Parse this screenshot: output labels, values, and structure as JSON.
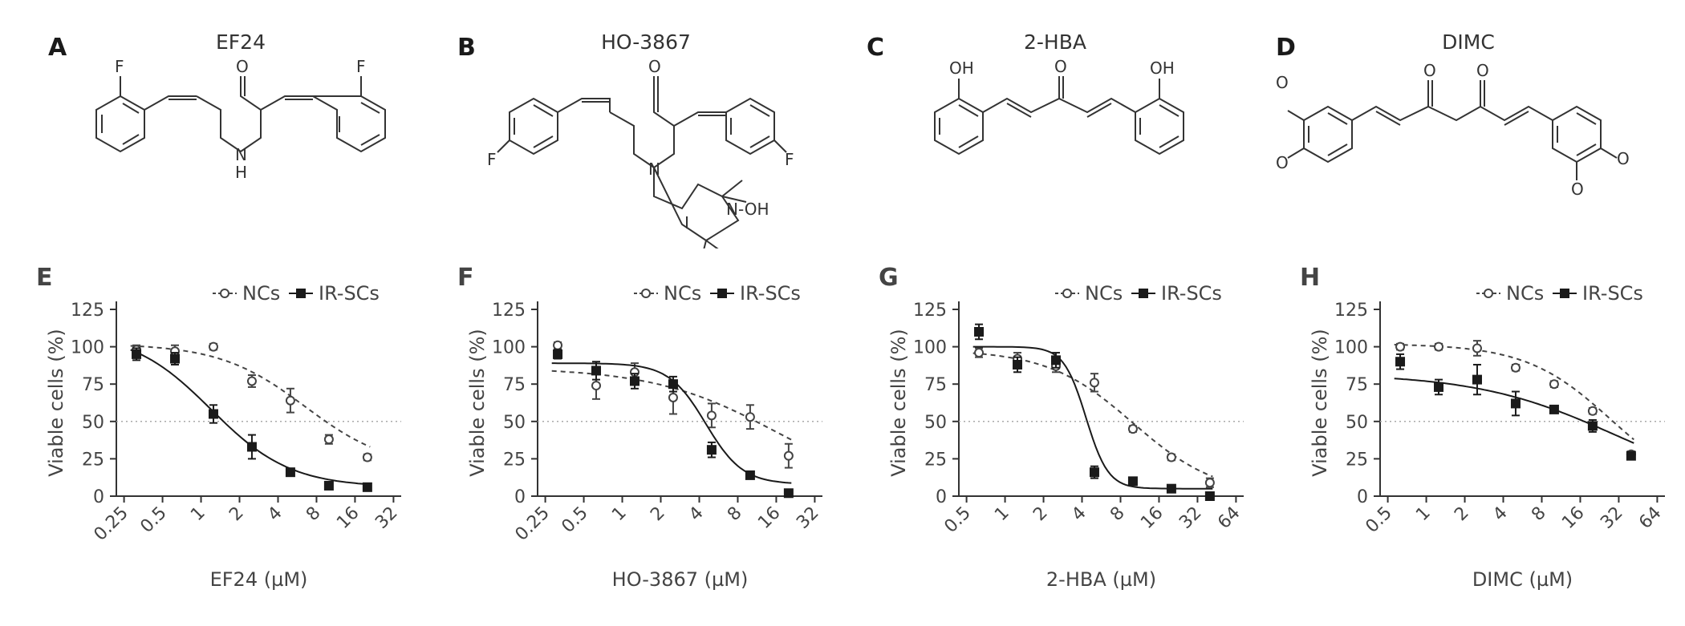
{
  "panels_top": [
    {
      "letter": "A",
      "title": "EF24"
    },
    {
      "letter": "B",
      "title": "HO-3867"
    },
    {
      "letter": "C",
      "title": "2-HBA"
    },
    {
      "letter": "D",
      "title": "DIMC"
    }
  ],
  "structure_atom_labels": {
    "EF24": [
      "F",
      "O",
      "F",
      "N",
      "H"
    ],
    "HO-3867": [
      "O",
      "F",
      "F",
      "N",
      "N-OH"
    ],
    "2-HBA": [
      "OH",
      "O",
      "OH"
    ],
    "DIMC": [
      "O",
      "O",
      "O",
      "O",
      "O",
      "O"
    ]
  },
  "colors": {
    "ncs": "#444444",
    "irscs": "#1a1a1a",
    "reference_line": "#aaaaaa"
  },
  "chart_data": [
    {
      "letter": "E",
      "type": "scatter",
      "scale_x": "log2",
      "xlabel": "EF24 (µM)",
      "ylabel": "Viable cells (%)",
      "xticks": [
        "0.25",
        "0.5",
        "1",
        "2",
        "4",
        "8",
        "16",
        "32"
      ],
      "yticks": [
        "0",
        "25",
        "50",
        "75",
        "100",
        "125"
      ],
      "ylim": [
        0,
        125
      ],
      "reference_line": 50,
      "legend": [
        "NCs",
        "IR-SCs"
      ],
      "series": [
        {
          "name": "NCs",
          "marker": "open-circle",
          "line": "dashed",
          "x": [
            0.3125,
            0.625,
            1.25,
            2.5,
            5,
            10,
            20
          ],
          "y": [
            98,
            97,
            100,
            77,
            64,
            38,
            26
          ],
          "err": [
            3,
            4,
            2,
            4,
            8,
            3,
            2
          ],
          "fit": {
            "top": 102,
            "bottom": 18,
            "ec50": 6.5,
            "hill": 1.3
          }
        },
        {
          "name": "IR-SCs",
          "marker": "filled-square",
          "line": "solid",
          "x": [
            0.3125,
            0.625,
            1.25,
            2.5,
            5,
            10,
            20
          ],
          "y": [
            95,
            92,
            55,
            33,
            16,
            7,
            6
          ],
          "err": [
            4,
            4,
            6,
            8,
            2,
            1,
            1
          ],
          "fit": {
            "top": 110,
            "bottom": 6,
            "ec50": 1.2,
            "hill": 1.4
          }
        }
      ]
    },
    {
      "letter": "F",
      "type": "scatter",
      "scale_x": "log2",
      "xlabel": "HO-3867 (µM)",
      "ylabel": "Viable cells (%)",
      "xticks": [
        "0.25",
        "0.5",
        "1",
        "2",
        "4",
        "8",
        "16",
        "32"
      ],
      "yticks": [
        "0",
        "25",
        "50",
        "75",
        "100",
        "125"
      ],
      "ylim": [
        0,
        125
      ],
      "reference_line": 50,
      "legend": [
        "NCs",
        "IR-SCs"
      ],
      "series": [
        {
          "name": "NCs",
          "marker": "open-circle",
          "line": "dashed",
          "x": [
            0.3125,
            0.625,
            1.25,
            2.5,
            5,
            10,
            20
          ],
          "y": [
            101,
            74,
            83,
            66,
            54,
            53,
            27
          ],
          "err": [
            2,
            9,
            6,
            11,
            8,
            8,
            8
          ],
          "fit": {
            "top": 86,
            "bottom": 0,
            "ec50": 16,
            "hill": 0.9
          }
        },
        {
          "name": "IR-SCs",
          "marker": "filled-square",
          "line": "solid",
          "x": [
            0.3125,
            0.625,
            1.25,
            2.5,
            5,
            10,
            20
          ],
          "y": [
            95,
            84,
            77,
            75,
            31,
            14,
            2
          ],
          "err": [
            3,
            6,
            5,
            5,
            5,
            1,
            1
          ],
          "fit": {
            "top": 89,
            "bottom": 8,
            "ec50": 4.5,
            "hill": 3
          }
        }
      ]
    },
    {
      "letter": "G",
      "type": "scatter",
      "scale_x": "log2",
      "xlabel": "2-HBA (µM)",
      "ylabel": "Viable cells (%)",
      "xticks": [
        "0.5",
        "1",
        "2",
        "4",
        "8",
        "16",
        "32",
        "64"
      ],
      "yticks": [
        "0",
        "25",
        "50",
        "75",
        "100",
        "125"
      ],
      "ylim": [
        0,
        125
      ],
      "reference_line": 50,
      "legend": [
        "NCs",
        "IR-SCs"
      ],
      "series": [
        {
          "name": "NCs",
          "marker": "open-circle",
          "line": "dashed",
          "x": [
            0.625,
            1.25,
            2.5,
            5,
            10,
            20,
            40
          ],
          "y": [
            96,
            92,
            87,
            76,
            45,
            26,
            9
          ],
          "err": [
            3,
            4,
            4,
            6,
            2,
            2,
            3
          ],
          "fit": {
            "top": 98,
            "bottom": 0,
            "ec50": 10,
            "hill": 1.3
          }
        },
        {
          "name": "IR-SCs",
          "marker": "filled-square",
          "line": "solid",
          "x": [
            0.625,
            1.25,
            2.5,
            5,
            10,
            20,
            40
          ],
          "y": [
            110,
            88,
            91,
            16,
            10,
            5,
            0
          ],
          "err": [
            5,
            5,
            5,
            4,
            2,
            1,
            1
          ],
          "fit": {
            "top": 100,
            "bottom": 5,
            "ec50": 4.3,
            "hill": 5
          }
        }
      ]
    },
    {
      "letter": "H",
      "type": "scatter",
      "scale_x": "log2",
      "xlabel": "DIMC (µM)",
      "ylabel": "Viable cells (%)",
      "xticks": [
        "0.5",
        "1",
        "2",
        "4",
        "8",
        "16",
        "32",
        "64"
      ],
      "yticks": [
        "0",
        "25",
        "50",
        "75",
        "100",
        "125"
      ],
      "ylim": [
        0,
        125
      ],
      "reference_line": 50,
      "legend": [
        "NCs",
        "IR-SCs"
      ],
      "series": [
        {
          "name": "NCs",
          "marker": "open-circle",
          "line": "dashed",
          "x": [
            0.625,
            1.25,
            2.5,
            5,
            10,
            20,
            40
          ],
          "y": [
            100,
            100,
            99,
            86,
            75,
            57,
            28
          ],
          "err": [
            2,
            2,
            5,
            2,
            2,
            2,
            2
          ],
          "fit": {
            "top": 102,
            "bottom": 0,
            "ec50": 28,
            "hill": 1.3
          }
        },
        {
          "name": "IR-SCs",
          "marker": "filled-square",
          "line": "solid",
          "x": [
            0.625,
            1.25,
            2.5,
            5,
            10,
            20,
            40
          ],
          "y": [
            90,
            73,
            78,
            62,
            58,
            47,
            27
          ],
          "err": [
            5,
            5,
            10,
            8,
            2,
            4,
            2
          ],
          "fit": {
            "top": 82,
            "bottom": 0,
            "ec50": 30,
            "hill": 0.8
          }
        }
      ]
    }
  ]
}
